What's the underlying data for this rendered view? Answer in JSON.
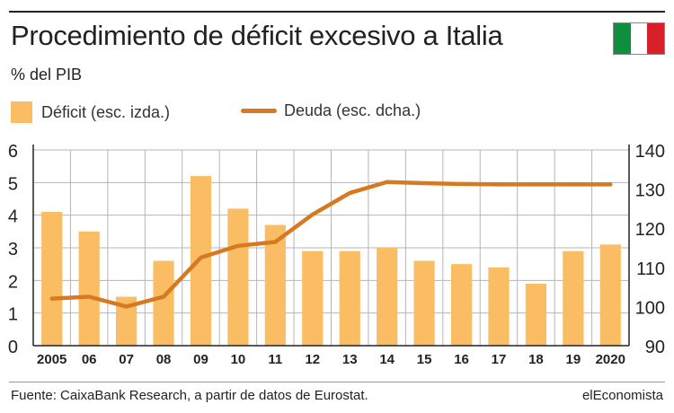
{
  "header": {
    "title": "Procedimiento de déficit excesivo a Italia",
    "subtitle": "% del PIB"
  },
  "flag": {
    "name": "italy-flag",
    "colors": [
      "#0e8f3d",
      "#ffffff",
      "#d8202b"
    ]
  },
  "legend": {
    "deficit_label": "Déficit (esc. izda.)",
    "deuda_label": "Deuda (esc. dcha.)"
  },
  "colors": {
    "bar": "#fbbd64",
    "line": "#d67a22",
    "grid": "#b5b5b5",
    "axis": "#222222"
  },
  "chart_data": {
    "type": "bar",
    "categories": [
      "2005",
      "06",
      "07",
      "08",
      "09",
      "10",
      "11",
      "12",
      "13",
      "14",
      "15",
      "16",
      "17",
      "18",
      "19",
      "2020"
    ],
    "series": [
      {
        "name": "Déficit (esc. izda.)",
        "type": "bar",
        "axis": "left",
        "values": [
          4.1,
          3.5,
          1.5,
          2.6,
          5.2,
          4.2,
          3.7,
          2.9,
          2.9,
          3.0,
          2.6,
          2.5,
          2.4,
          1.9,
          2.9,
          3.1
        ]
      },
      {
        "name": "Deuda (esc. dcha.)",
        "type": "line",
        "axis": "right",
        "values": [
          102,
          102.5,
          100,
          102.5,
          112.5,
          115.5,
          116.5,
          123.5,
          129,
          131.8,
          131.5,
          131.3,
          131.2,
          131.2,
          131.2,
          131.2
        ]
      }
    ],
    "left_axis": {
      "ylim": [
        0,
        6
      ],
      "ticks": [
        "0",
        "1",
        "2",
        "3",
        "4",
        "5",
        "6"
      ]
    },
    "right_axis": {
      "ylim": [
        90,
        140
      ],
      "ticks": [
        "90",
        "100",
        "110",
        "120",
        "130",
        "140"
      ]
    },
    "grid": true
  },
  "footer": {
    "source": "Fuente: CaixaBank Research, a partir de datos de Eurostat.",
    "brand": "elEconomista"
  }
}
